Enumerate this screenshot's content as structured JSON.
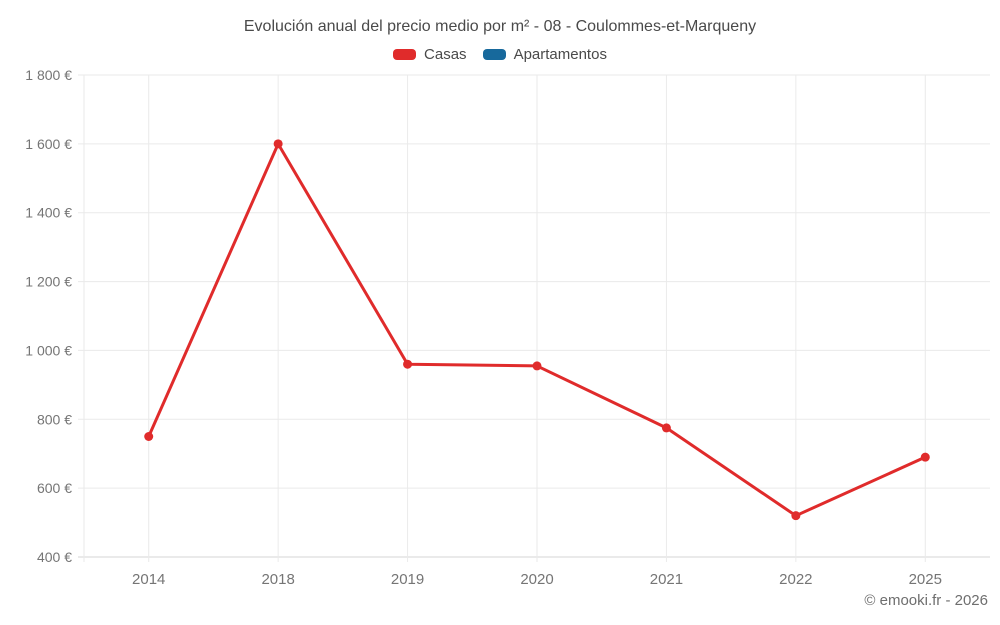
{
  "chart_data": {
    "type": "line",
    "title": "Evolución anual del precio medio por m² - 08 - Coulommes-et-Marqueny",
    "categories": [
      "2014",
      "2018",
      "2019",
      "2020",
      "2021",
      "2022",
      "2025"
    ],
    "series": [
      {
        "name": "Casas",
        "color": "#e02b2b",
        "values": [
          750,
          1600,
          960,
          955,
          775,
          520,
          690
        ]
      },
      {
        "name": "Apartamentos",
        "color": "#17699c",
        "values": []
      }
    ],
    "xlabel": "",
    "ylabel": "",
    "ylim": [
      400,
      1800
    ],
    "ytick_step": 200,
    "ytick_suffix": " €",
    "ytick_labels": [
      "400 €",
      "600 €",
      "800 €",
      "1 000 €",
      "1 200 €",
      "1 400 €",
      "1 600 €",
      "1 800 €"
    ],
    "grid": true,
    "legend_position": "top"
  },
  "footer": {
    "copyright": "© emooki.fr - 2026"
  },
  "style_colors": {
    "grid": "#eaeaea",
    "axis": "#d4d4d4",
    "tick_label": "#757575",
    "title": "#4a4a4a",
    "copyright": "#6e6e6e"
  }
}
